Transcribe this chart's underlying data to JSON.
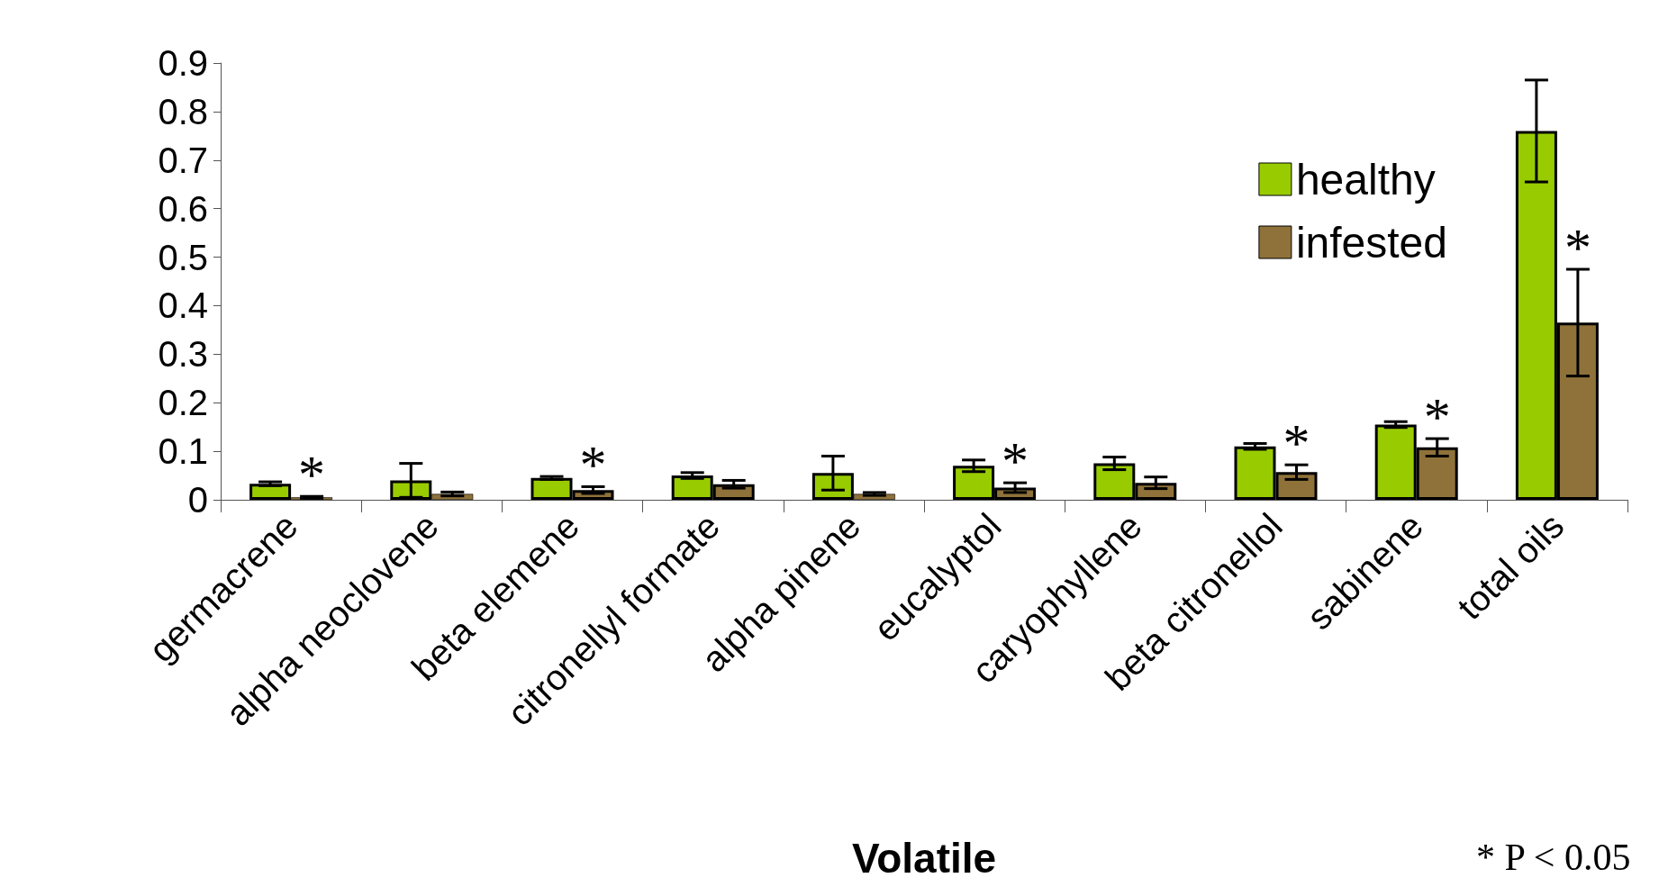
{
  "chart_data": {
    "type": "bar",
    "xlabel": "Volatile",
    "categories": [
      "germacrene",
      "alpha neoclovene",
      "beta elemene",
      "citronellyl formate",
      "alpha pinene",
      "eucalyptol",
      "caryophyllene",
      "beta citronellol",
      "sabinene",
      "total oils"
    ],
    "series": [
      {
        "name": "healthy",
        "color": "#99cc00",
        "values": [
          0.033,
          0.04,
          0.045,
          0.05,
          0.055,
          0.07,
          0.075,
          0.11,
          0.155,
          0.76
        ],
        "errors": [
          0.004,
          0.035,
          0.003,
          0.006,
          0.035,
          0.012,
          0.013,
          0.006,
          0.006,
          0.105
        ]
      },
      {
        "name": "infested",
        "color": "#8f723a",
        "values": [
          0.005,
          0.012,
          0.02,
          0.032,
          0.012,
          0.025,
          0.035,
          0.057,
          0.108,
          0.365
        ],
        "errors": [
          0.002,
          0.004,
          0.007,
          0.008,
          0.003,
          0.01,
          0.012,
          0.015,
          0.018,
          0.11
        ],
        "value_labels": [
          "*",
          null,
          "*",
          null,
          null,
          "*",
          null,
          "*",
          "*",
          "*"
        ]
      }
    ],
    "ylim": [
      0,
      0.9
    ],
    "yticks": [
      0,
      0.1,
      0.2,
      0.3,
      0.4,
      0.5,
      0.6,
      0.7,
      0.8,
      0.9
    ],
    "grid": false,
    "legend": "top right",
    "annotations": [
      "* P < 0.05"
    ]
  }
}
